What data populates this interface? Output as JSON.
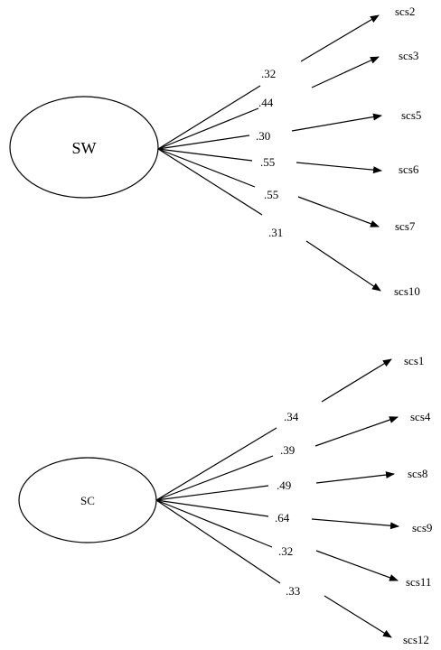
{
  "factors": [
    {
      "label": "SW",
      "paths": [
        {
          "loading": ".32",
          "indicator": "scs2"
        },
        {
          "loading": ".44",
          "indicator": "scs3"
        },
        {
          "loading": ".30",
          "indicator": "scs5"
        },
        {
          "loading": ".55",
          "indicator": "scs6"
        },
        {
          "loading": ".55",
          "indicator": "scs7"
        },
        {
          "loading": ".31",
          "indicator": "scs10"
        }
      ]
    },
    {
      "label": "SC",
      "paths": [
        {
          "loading": ".34",
          "indicator": "scs1"
        },
        {
          "loading": ".39",
          "indicator": "scs4"
        },
        {
          "loading": ".49",
          "indicator": "scs8"
        },
        {
          "loading": ".64",
          "indicator": "scs9"
        },
        {
          "loading": ".32",
          "indicator": "scs11"
        },
        {
          "loading": ".33",
          "indicator": "scs12"
        }
      ]
    }
  ]
}
